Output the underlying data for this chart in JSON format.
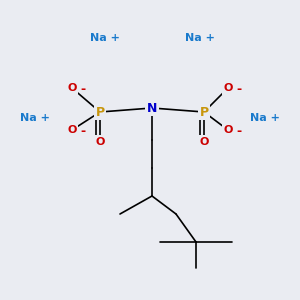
{
  "background_color": "#eaecf2",
  "atom_colors": {
    "P": "#c8960c",
    "O": "#cc0000",
    "N": "#0000cc",
    "Na": "#1a7acc",
    "C": "#000000"
  },
  "bond_color": "#000000",
  "na_color": "#1a7acc",
  "o_color": "#cc0000"
}
